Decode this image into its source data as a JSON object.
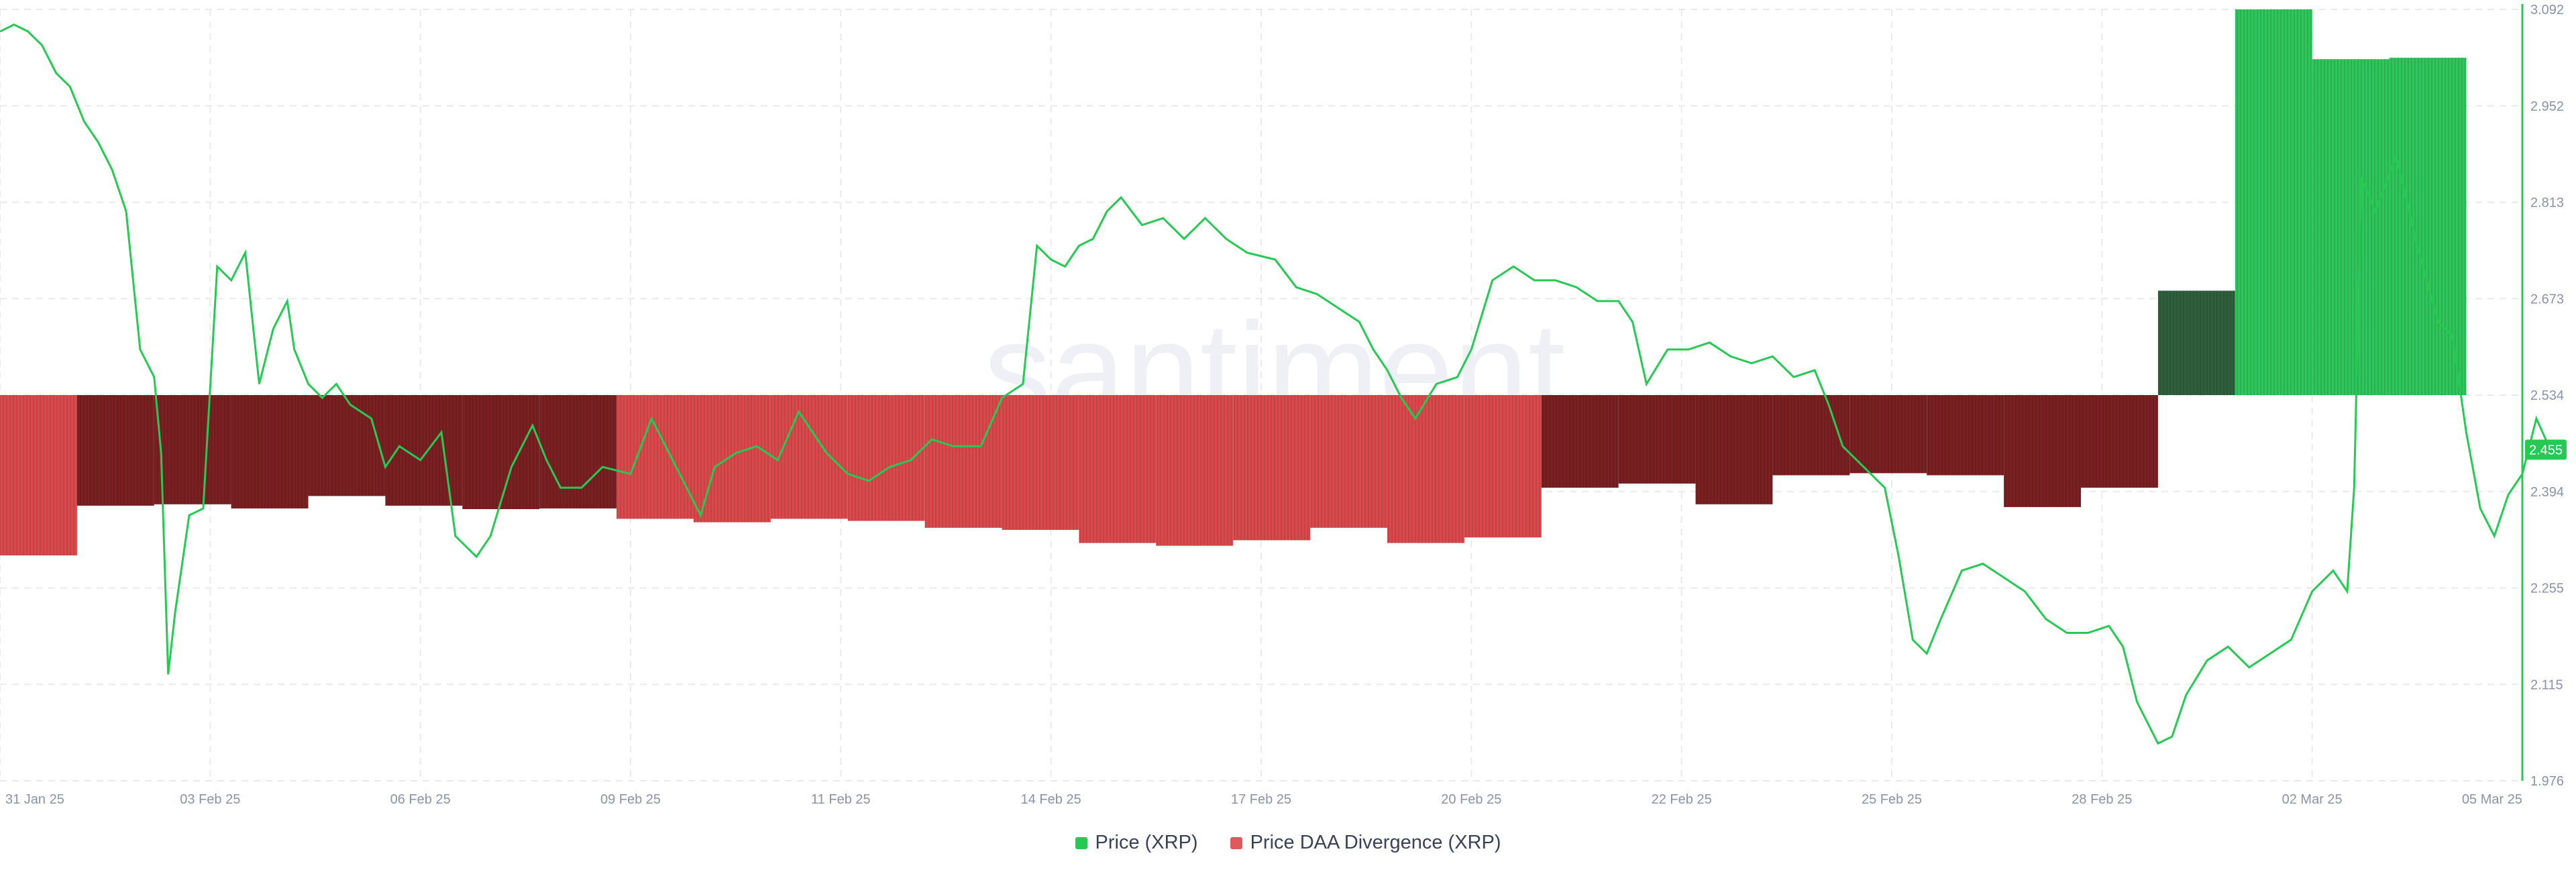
{
  "watermark": ".santiment.",
  "colors": {
    "price": "#26c953",
    "div_pos": "#2ec55a",
    "div_pos_dark": "#2f5f3d",
    "div_neg": "#d9494c",
    "div_neg_dark": "#7a2022",
    "grid": "#e8eaee",
    "axis_label": "#8a93a8",
    "price_badge": "#26c953"
  },
  "chart_data": {
    "type": "line",
    "x_tick_labels": [
      "31 Jan 25",
      "03 Feb 25",
      "06 Feb 25",
      "09 Feb 25",
      "11 Feb 25",
      "14 Feb 25",
      "17 Feb 25",
      "20 Feb 25",
      "22 Feb 25",
      "25 Feb 25",
      "28 Feb 25",
      "02 Mar 25",
      "05 Mar 25"
    ],
    "x_tick_positions": [
      0,
      3,
      6,
      9,
      12,
      15,
      18,
      21,
      24,
      27,
      30,
      33,
      36
    ],
    "xlim": [
      0,
      36
    ],
    "y_tick_labels": [
      "3.092",
      "2.952",
      "2.813",
      "2.673",
      "2.534",
      "2.394",
      "2.255",
      "2.115",
      "1.976"
    ],
    "ylim": [
      1.976,
      3.092
    ],
    "last_price_label": "2.455",
    "series": [
      {
        "name": "Price (XRP)",
        "kind": "line",
        "points": [
          [
            0,
            3.06
          ],
          [
            0.2,
            3.07
          ],
          [
            0.4,
            3.06
          ],
          [
            0.6,
            3.04
          ],
          [
            0.8,
            3.0
          ],
          [
            1.0,
            2.98
          ],
          [
            1.2,
            2.93
          ],
          [
            1.4,
            2.9
          ],
          [
            1.6,
            2.86
          ],
          [
            1.8,
            2.8
          ],
          [
            2.0,
            2.6
          ],
          [
            2.2,
            2.56
          ],
          [
            2.3,
            2.45
          ],
          [
            2.4,
            2.13
          ],
          [
            2.5,
            2.22
          ],
          [
            2.7,
            2.36
          ],
          [
            2.9,
            2.37
          ],
          [
            3.1,
            2.72
          ],
          [
            3.3,
            2.7
          ],
          [
            3.5,
            2.74
          ],
          [
            3.7,
            2.55
          ],
          [
            3.9,
            2.63
          ],
          [
            4.1,
            2.67
          ],
          [
            4.2,
            2.6
          ],
          [
            4.4,
            2.55
          ],
          [
            4.6,
            2.53
          ],
          [
            4.8,
            2.55
          ],
          [
            5.0,
            2.52
          ],
          [
            5.3,
            2.5
          ],
          [
            5.5,
            2.43
          ],
          [
            5.7,
            2.46
          ],
          [
            6.0,
            2.44
          ],
          [
            6.3,
            2.48
          ],
          [
            6.5,
            2.33
          ],
          [
            6.8,
            2.3
          ],
          [
            7.0,
            2.33
          ],
          [
            7.3,
            2.43
          ],
          [
            7.6,
            2.49
          ],
          [
            7.8,
            2.44
          ],
          [
            8.0,
            2.4
          ],
          [
            8.3,
            2.4
          ],
          [
            8.6,
            2.43
          ],
          [
            9.0,
            2.42
          ],
          [
            9.3,
            2.5
          ],
          [
            9.6,
            2.44
          ],
          [
            9.8,
            2.4
          ],
          [
            10.0,
            2.36
          ],
          [
            10.2,
            2.43
          ],
          [
            10.5,
            2.45
          ],
          [
            10.8,
            2.46
          ],
          [
            11.1,
            2.44
          ],
          [
            11.4,
            2.51
          ],
          [
            11.8,
            2.45
          ],
          [
            12.1,
            2.42
          ],
          [
            12.4,
            2.41
          ],
          [
            12.7,
            2.43
          ],
          [
            13.0,
            2.44
          ],
          [
            13.3,
            2.47
          ],
          [
            13.6,
            2.46
          ],
          [
            14.0,
            2.46
          ],
          [
            14.3,
            2.53
          ],
          [
            14.6,
            2.55
          ],
          [
            14.8,
            2.75
          ],
          [
            15.0,
            2.73
          ],
          [
            15.2,
            2.72
          ],
          [
            15.4,
            2.75
          ],
          [
            15.6,
            2.76
          ],
          [
            15.8,
            2.8
          ],
          [
            16.0,
            2.82
          ],
          [
            16.3,
            2.78
          ],
          [
            16.6,
            2.79
          ],
          [
            16.9,
            2.76
          ],
          [
            17.2,
            2.79
          ],
          [
            17.5,
            2.76
          ],
          [
            17.8,
            2.74
          ],
          [
            18.2,
            2.73
          ],
          [
            18.5,
            2.69
          ],
          [
            18.8,
            2.68
          ],
          [
            19.1,
            2.66
          ],
          [
            19.4,
            2.64
          ],
          [
            19.6,
            2.6
          ],
          [
            19.8,
            2.57
          ],
          [
            20.0,
            2.53
          ],
          [
            20.2,
            2.5
          ],
          [
            20.5,
            2.55
          ],
          [
            20.8,
            2.56
          ],
          [
            21.0,
            2.6
          ],
          [
            21.3,
            2.7
          ],
          [
            21.6,
            2.72
          ],
          [
            21.9,
            2.7
          ],
          [
            22.2,
            2.7
          ],
          [
            22.5,
            2.69
          ],
          [
            22.8,
            2.67
          ],
          [
            23.1,
            2.67
          ],
          [
            23.3,
            2.64
          ],
          [
            23.5,
            2.55
          ],
          [
            23.8,
            2.6
          ],
          [
            24.1,
            2.6
          ],
          [
            24.4,
            2.61
          ],
          [
            24.7,
            2.59
          ],
          [
            25.0,
            2.58
          ],
          [
            25.3,
            2.59
          ],
          [
            25.6,
            2.56
          ],
          [
            25.9,
            2.57
          ],
          [
            26.1,
            2.52
          ],
          [
            26.3,
            2.46
          ],
          [
            26.6,
            2.43
          ],
          [
            26.9,
            2.4
          ],
          [
            27.1,
            2.3
          ],
          [
            27.3,
            2.18
          ],
          [
            27.5,
            2.16
          ],
          [
            27.7,
            2.21
          ],
          [
            28.0,
            2.28
          ],
          [
            28.3,
            2.29
          ],
          [
            28.6,
            2.27
          ],
          [
            28.9,
            2.25
          ],
          [
            29.2,
            2.21
          ],
          [
            29.5,
            2.19
          ],
          [
            29.8,
            2.19
          ],
          [
            30.1,
            2.2
          ],
          [
            30.3,
            2.17
          ],
          [
            30.5,
            2.09
          ],
          [
            30.8,
            2.03
          ],
          [
            31.0,
            2.04
          ],
          [
            31.2,
            2.1
          ],
          [
            31.5,
            2.15
          ],
          [
            31.8,
            2.17
          ],
          [
            32.1,
            2.14
          ],
          [
            32.4,
            2.16
          ],
          [
            32.7,
            2.18
          ],
          [
            33.0,
            2.25
          ],
          [
            33.3,
            2.28
          ],
          [
            33.5,
            2.25
          ],
          [
            33.6,
            2.4
          ],
          [
            33.7,
            2.85
          ],
          [
            33.9,
            2.8
          ],
          [
            34.2,
            2.88
          ],
          [
            34.5,
            2.75
          ],
          [
            34.8,
            2.64
          ],
          [
            35.0,
            2.62
          ],
          [
            35.2,
            2.48
          ],
          [
            35.4,
            2.37
          ],
          [
            35.6,
            2.33
          ],
          [
            35.8,
            2.39
          ],
          [
            36.0,
            2.42
          ],
          [
            36.2,
            2.5
          ],
          [
            36.4,
            2.455
          ]
        ]
      },
      {
        "name": "Price DAA Divergence (XRP)",
        "kind": "bars",
        "baseline": 2.534,
        "bars": [
          {
            "x0": 0,
            "x1": 1.1,
            "value": 2.302,
            "tone": "light"
          },
          {
            "x0": 1.1,
            "x1": 2.2,
            "value": 2.374,
            "tone": "dark"
          },
          {
            "x0": 2.2,
            "x1": 3.3,
            "value": 2.376,
            "tone": "dark"
          },
          {
            "x0": 3.3,
            "x1": 4.4,
            "value": 2.37,
            "tone": "dark"
          },
          {
            "x0": 4.4,
            "x1": 5.5,
            "value": 2.388,
            "tone": "dark"
          },
          {
            "x0": 5.5,
            "x1": 6.6,
            "value": 2.374,
            "tone": "dark"
          },
          {
            "x0": 6.6,
            "x1": 7.7,
            "value": 2.369,
            "tone": "dark"
          },
          {
            "x0": 7.7,
            "x1": 8.8,
            "value": 2.37,
            "tone": "dark"
          },
          {
            "x0": 8.8,
            "x1": 9.9,
            "value": 2.355,
            "tone": "light"
          },
          {
            "x0": 9.9,
            "x1": 11.0,
            "value": 2.35,
            "tone": "light"
          },
          {
            "x0": 11.0,
            "x1": 12.1,
            "value": 2.355,
            "tone": "light"
          },
          {
            "x0": 12.1,
            "x1": 13.2,
            "value": 2.352,
            "tone": "light"
          },
          {
            "x0": 13.2,
            "x1": 14.3,
            "value": 2.342,
            "tone": "light"
          },
          {
            "x0": 14.3,
            "x1": 15.4,
            "value": 2.339,
            "tone": "light"
          },
          {
            "x0": 15.4,
            "x1": 16.5,
            "value": 2.32,
            "tone": "light"
          },
          {
            "x0": 16.5,
            "x1": 17.6,
            "value": 2.316,
            "tone": "light"
          },
          {
            "x0": 17.6,
            "x1": 18.7,
            "value": 2.324,
            "tone": "light"
          },
          {
            "x0": 18.7,
            "x1": 19.8,
            "value": 2.342,
            "tone": "light"
          },
          {
            "x0": 19.8,
            "x1": 20.9,
            "value": 2.32,
            "tone": "light"
          },
          {
            "x0": 20.9,
            "x1": 22.0,
            "value": 2.328,
            "tone": "light"
          },
          {
            "x0": 22.0,
            "x1": 23.1,
            "value": 2.4,
            "tone": "dark"
          },
          {
            "x0": 23.1,
            "x1": 24.2,
            "value": 2.406,
            "tone": "dark"
          },
          {
            "x0": 24.2,
            "x1": 25.3,
            "value": 2.376,
            "tone": "dark"
          },
          {
            "x0": 25.3,
            "x1": 26.4,
            "value": 2.418,
            "tone": "dark"
          },
          {
            "x0": 26.4,
            "x1": 27.5,
            "value": 2.421,
            "tone": "dark"
          },
          {
            "x0": 27.5,
            "x1": 28.6,
            "value": 2.418,
            "tone": "dark"
          },
          {
            "x0": 28.6,
            "x1": 29.7,
            "value": 2.372,
            "tone": "dark"
          },
          {
            "x0": 29.7,
            "x1": 30.8,
            "value": 2.4,
            "tone": "dark"
          },
          {
            "x0": 30.8,
            "x1": 31.9,
            "value": 2.685,
            "tone": "dark"
          },
          {
            "x0": 31.9,
            "x1": 33.0,
            "value": 3.092,
            "tone": "light"
          },
          {
            "x0": 33.0,
            "x1": 34.1,
            "value": 3.02,
            "tone": "light"
          },
          {
            "x0": 34.1,
            "x1": 35.2,
            "value": 3.022,
            "tone": "light"
          }
        ]
      }
    ],
    "legend": [
      {
        "label": "Price (XRP)",
        "color": "#26c953"
      },
      {
        "label": "Price DAA Divergence (XRP)",
        "color": "#e05a5d"
      }
    ],
    "grid": true,
    "legend_position": "bottom-center"
  }
}
